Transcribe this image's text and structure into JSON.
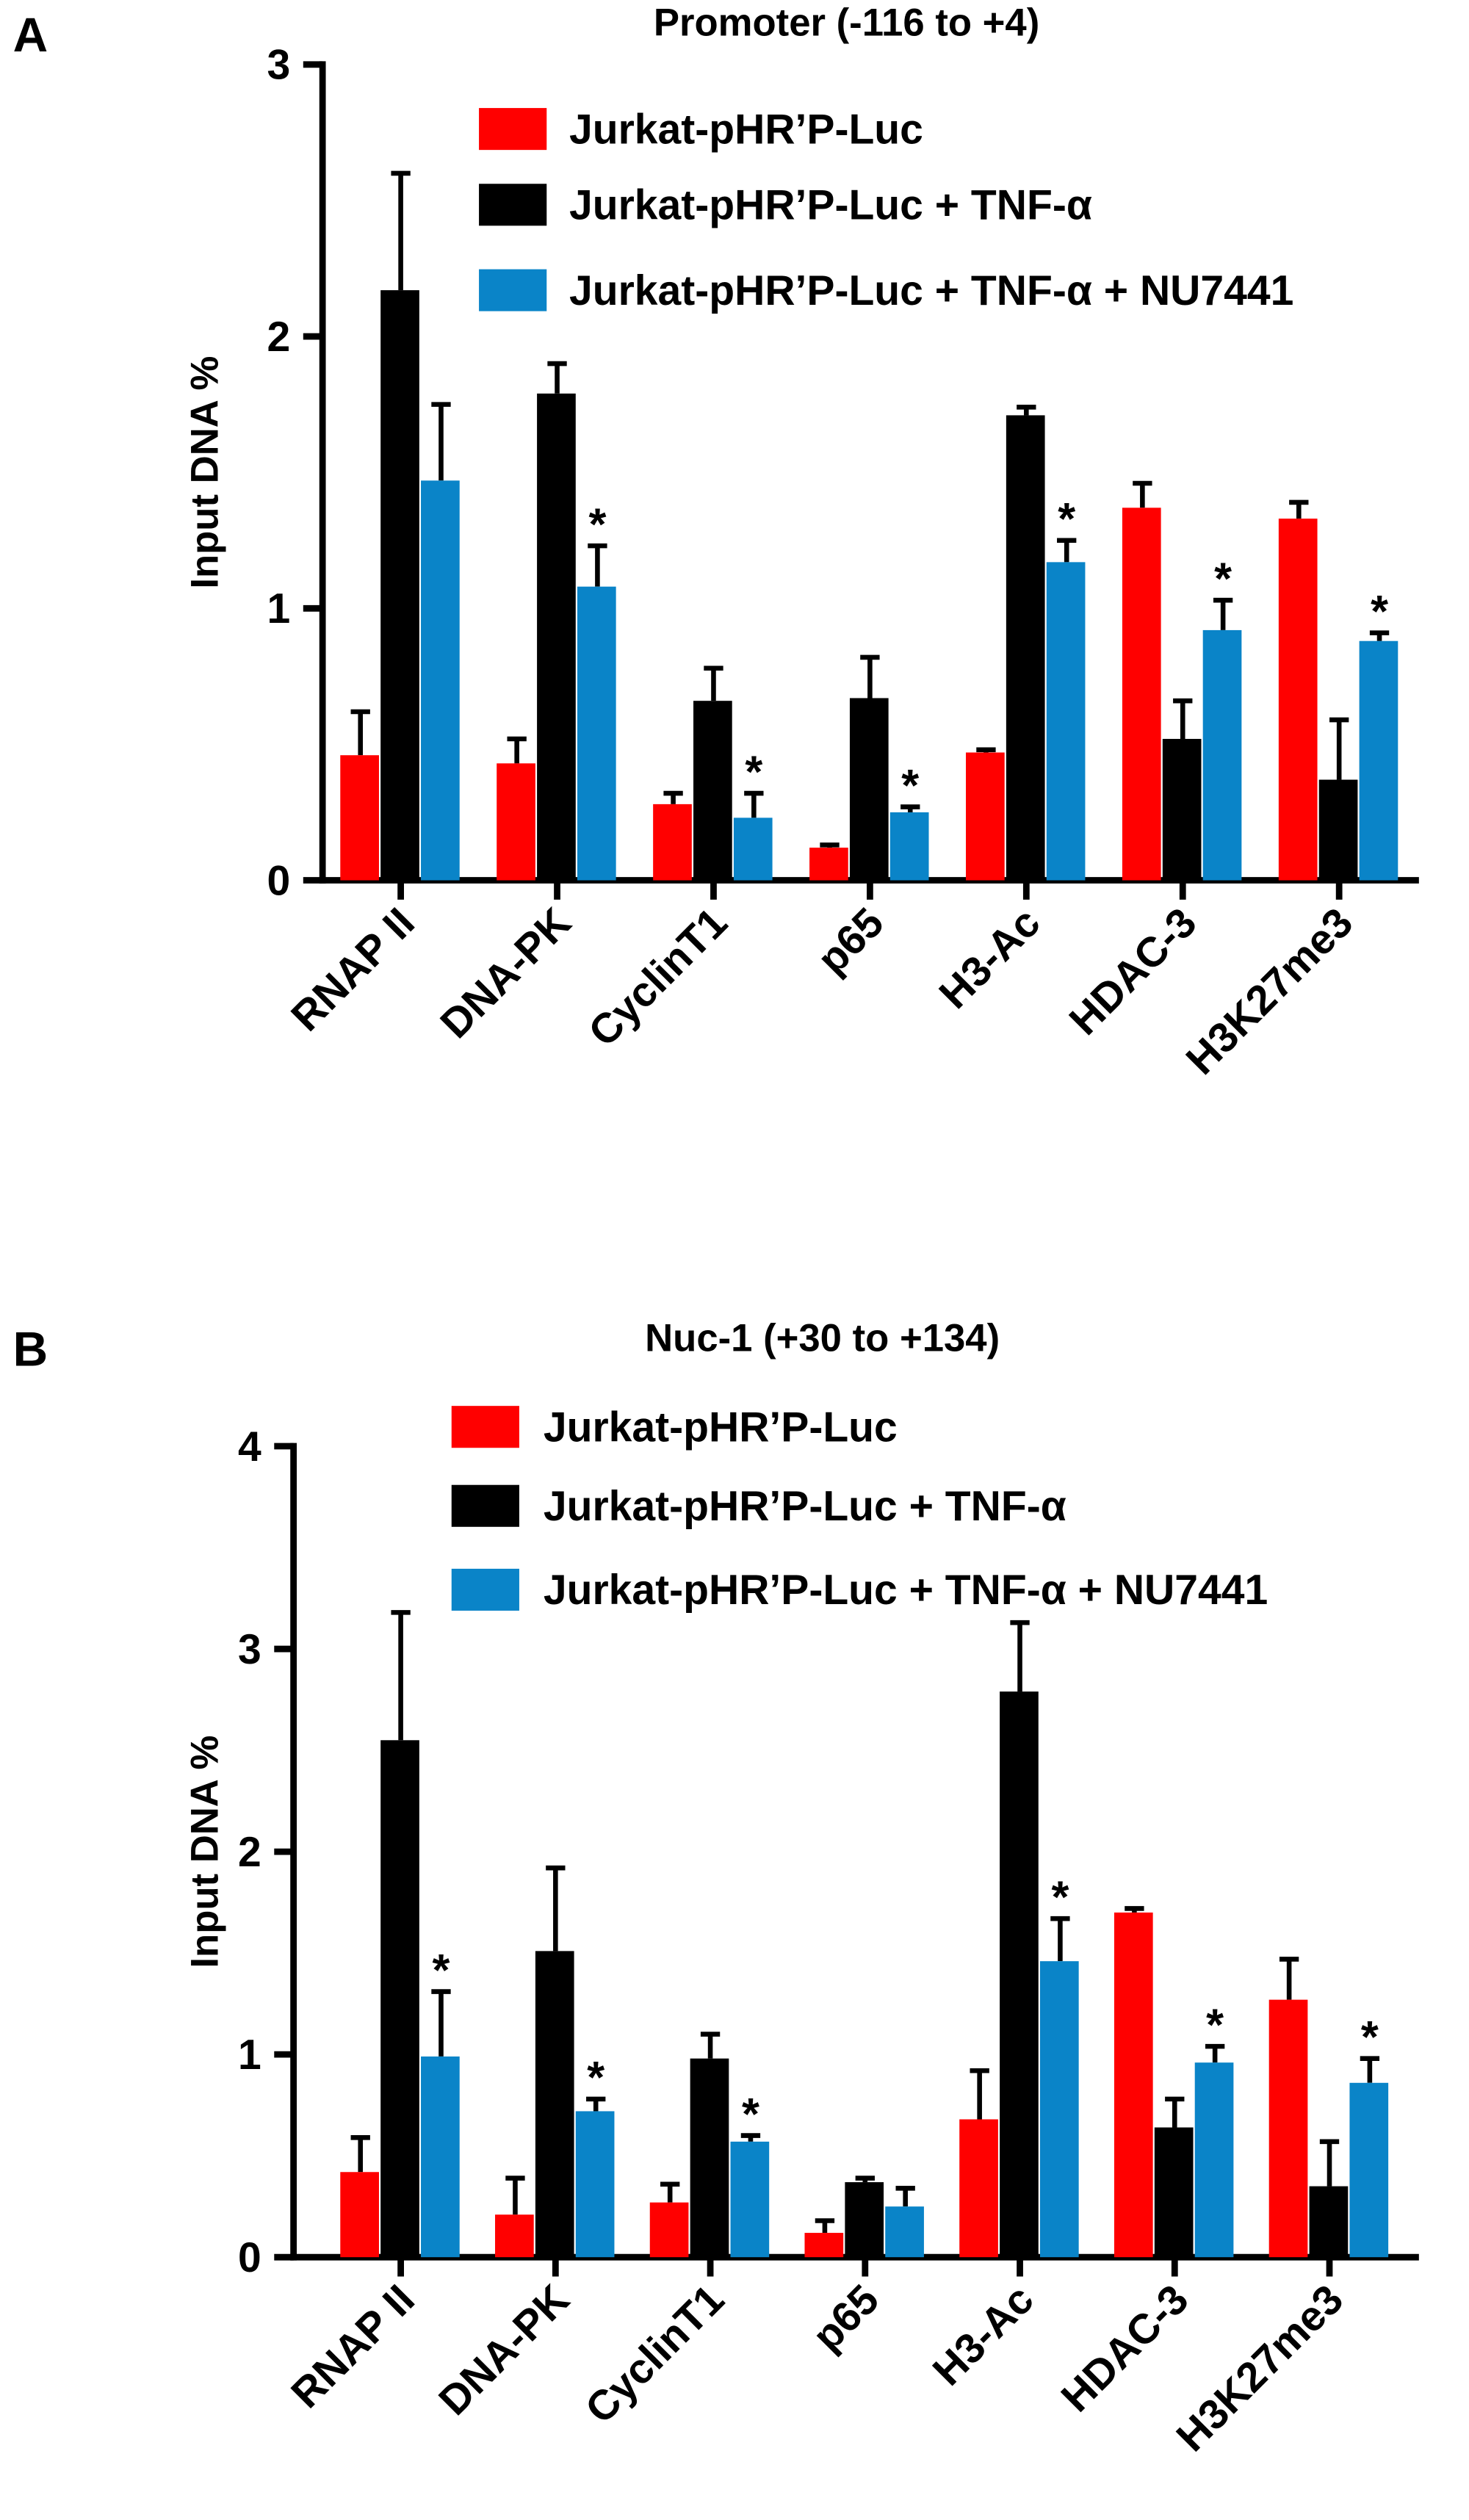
{
  "chart_data": [
    {
      "type": "bar",
      "panel": "A",
      "title": "Promoter (-116 to +4)",
      "ylabel": "Input DNA %",
      "categories": [
        "RNAP II",
        "DNA-PK",
        "CyclinT1",
        "p65",
        "H3-Ac",
        "HDAC-3",
        "H3K27me3"
      ],
      "series": [
        {
          "name": "Jurkat-pHR’P-Luc",
          "color": "#ff0000",
          "values": [
            0.46,
            0.43,
            0.28,
            0.12,
            0.47,
            1.37,
            1.33
          ],
          "errors": [
            0.16,
            0.09,
            0.04,
            0.01,
            0.01,
            0.09,
            0.06
          ]
        },
        {
          "name": "Jurkat-pHR’P-Luc + TNF-α",
          "color": "#000000",
          "values": [
            2.17,
            1.79,
            0.66,
            0.67,
            1.71,
            0.52,
            0.37
          ],
          "errors": [
            0.43,
            0.11,
            0.12,
            0.15,
            0.03,
            0.14,
            0.22
          ]
        },
        {
          "name": "Jurkat-pHR’P-Luc + TNF-α + NU7441",
          "color": "#0a84c8",
          "values": [
            1.47,
            1.08,
            0.23,
            0.25,
            1.17,
            0.92,
            0.88
          ],
          "errors": [
            0.28,
            0.15,
            0.09,
            0.02,
            0.08,
            0.11,
            0.03
          ]
        }
      ],
      "annotations": [
        {
          "label": "*",
          "series": 2,
          "index": 1
        },
        {
          "label": "*",
          "series": 2,
          "index": 2
        },
        {
          "label": "*",
          "series": 2,
          "index": 3
        },
        {
          "label": "*",
          "series": 2,
          "index": 4
        },
        {
          "label": "*",
          "series": 2,
          "index": 5
        },
        {
          "label": "*",
          "series": 2,
          "index": 6
        }
      ],
      "ylim": [
        0,
        3
      ],
      "yticks": [
        0,
        1,
        2,
        3
      ],
      "legend": "top"
    },
    {
      "type": "bar",
      "panel": "B",
      "title": "Nuc-1 (+30 to +134)",
      "ylabel": "Input DNA %",
      "categories": [
        "RNAP II",
        "DNA-PK",
        "CyclinT1",
        "p65",
        "H3-Ac",
        "HDAC-3",
        "H3K27me3"
      ],
      "series": [
        {
          "name": "Jurkat-pHR’P-Luc",
          "color": "#ff0000",
          "values": [
            0.42,
            0.21,
            0.27,
            0.12,
            0.68,
            1.7,
            1.27
          ],
          "errors": [
            0.17,
            0.18,
            0.09,
            0.06,
            0.24,
            0.02,
            0.2
          ]
        },
        {
          "name": "Jurkat-pHR’P-Luc + TNF-α",
          "color": "#000000",
          "values": [
            2.55,
            1.51,
            0.98,
            0.37,
            2.79,
            0.64,
            0.35
          ],
          "errors": [
            0.63,
            0.41,
            0.12,
            0.02,
            0.34,
            0.14,
            0.22
          ]
        },
        {
          "name": "Jurkat-pHR’P-Luc + TNF-α + NU7441",
          "color": "#0a84c8",
          "values": [
            0.99,
            0.72,
            0.57,
            0.25,
            1.46,
            0.96,
            0.86
          ],
          "errors": [
            0.32,
            0.06,
            0.03,
            0.09,
            0.21,
            0.08,
            0.12
          ]
        }
      ],
      "annotations": [
        {
          "label": "*",
          "series": 2,
          "index": 0
        },
        {
          "label": "*",
          "series": 2,
          "index": 1
        },
        {
          "label": "*",
          "series": 2,
          "index": 2
        },
        {
          "label": "*",
          "series": 2,
          "index": 4
        },
        {
          "label": "*",
          "series": 2,
          "index": 5
        },
        {
          "label": "*",
          "series": 2,
          "index": 6
        }
      ],
      "ylim": [
        0,
        4
      ],
      "yticks": [
        0,
        1,
        2,
        3,
        4
      ],
      "legend": "top"
    }
  ]
}
